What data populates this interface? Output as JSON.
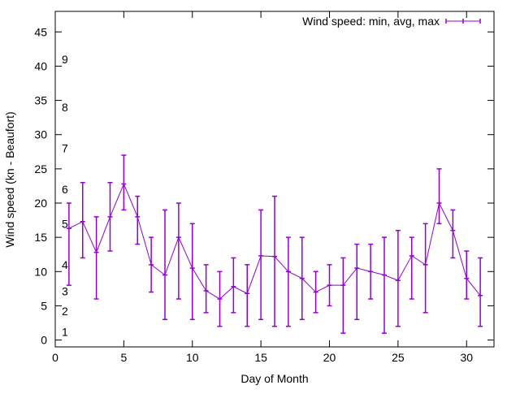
{
  "chart_data": {
    "type": "line",
    "title": "",
    "xlabel": "Day of Month",
    "ylabel": "Wind speed (kn - Beaufort)",
    "xlim": [
      0,
      32
    ],
    "ylim": [
      -1,
      48
    ],
    "xticks": [
      0,
      5,
      10,
      15,
      20,
      25,
      30
    ],
    "yticks": [
      0,
      5,
      10,
      15,
      20,
      25,
      30,
      35,
      40,
      45
    ],
    "grid": false,
    "legend": {
      "label": "Wind speed: min, avg, max",
      "placement": "top-right"
    },
    "series_color": "#9400d3",
    "beaufort_labels": [
      {
        "text": "1",
        "kn": 1.2
      },
      {
        "text": "2",
        "kn": 4.2
      },
      {
        "text": "3",
        "kn": 7.1
      },
      {
        "text": "4",
        "kn": 11
      },
      {
        "text": "5",
        "kn": 17
      },
      {
        "text": "6",
        "kn": 22
      },
      {
        "text": "7",
        "kn": 28
      },
      {
        "text": "8",
        "kn": 34
      },
      {
        "text": "9",
        "kn": 41
      }
    ],
    "series": [
      {
        "name": "Wind speed: min, avg, max",
        "x": [
          1,
          2,
          3,
          4,
          5,
          6,
          7,
          8,
          9,
          10,
          11,
          12,
          13,
          14,
          15,
          16,
          17,
          18,
          19,
          20,
          21,
          22,
          23,
          24,
          25,
          26,
          27,
          28,
          29,
          30,
          31
        ],
        "avg": [
          16.3,
          17.3,
          12.8,
          18,
          22.8,
          18,
          11,
          9.5,
          15,
          10.5,
          7.2,
          6,
          7.8,
          6.8,
          12.3,
          12.2,
          10,
          9,
          7,
          8,
          8,
          10.5,
          10,
          9.5,
          8.7,
          12.3,
          11,
          20,
          16,
          9,
          6.5
        ],
        "min": [
          8,
          12,
          6,
          13,
          19,
          14,
          7,
          3,
          6,
          3,
          4,
          2,
          4,
          2,
          3,
          2,
          2,
          3,
          4,
          5,
          1,
          3,
          6,
          1,
          2,
          6,
          4,
          17,
          12,
          6,
          2
        ],
        "max": [
          20,
          23,
          18,
          23,
          27,
          21,
          15,
          19,
          20,
          17,
          11,
          10,
          12,
          11,
          19,
          21,
          15,
          15,
          10,
          11,
          12,
          14,
          14,
          15,
          16,
          15,
          17,
          25,
          19,
          13,
          12
        ]
      }
    ]
  }
}
